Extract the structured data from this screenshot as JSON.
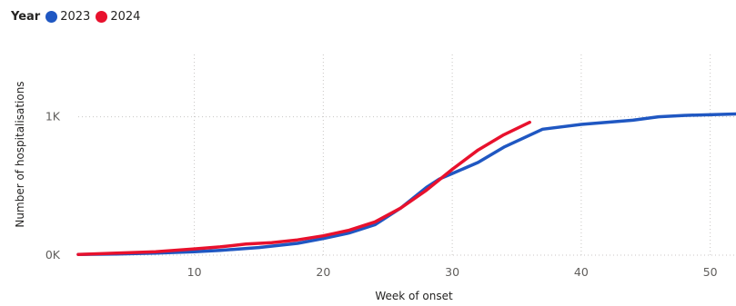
{
  "legend": {
    "title": "Year",
    "items": [
      {
        "label": "2023",
        "color": "#1f57c2"
      },
      {
        "label": "2024",
        "color": "#e8112d"
      }
    ]
  },
  "chart_data": {
    "type": "line",
    "title": "",
    "xlabel": "Week of onset",
    "ylabel": "Number of hospitalisations",
    "xlim": [
      1,
      52
    ],
    "ylim": [
      0,
      1450
    ],
    "x_ticks": [
      10,
      20,
      30,
      40,
      50
    ],
    "x_tick_labels": [
      "10",
      "20",
      "30",
      "40",
      "50"
    ],
    "y_ticks": [
      0,
      1000
    ],
    "y_tick_labels": [
      "0K",
      "1K"
    ],
    "grid": true,
    "legend_position": "top-left",
    "series": [
      {
        "name": "2023",
        "color": "#1f57c2",
        "x": [
          1,
          4,
          7,
          10,
          12,
          15,
          18,
          20,
          22,
          24,
          26,
          28,
          29,
          30,
          32,
          34,
          37,
          40,
          44,
          46,
          48,
          52
        ],
        "y": [
          5,
          8,
          15,
          25,
          35,
          55,
          85,
          120,
          160,
          220,
          340,
          490,
          550,
          590,
          670,
          780,
          910,
          945,
          975,
          1000,
          1010,
          1020
        ]
      },
      {
        "name": "2024",
        "color": "#e8112d",
        "x": [
          1,
          4,
          7,
          10,
          12,
          14,
          16,
          18,
          20,
          22,
          24,
          26,
          28,
          30,
          32,
          34,
          36
        ],
        "y": [
          5,
          15,
          25,
          45,
          60,
          80,
          90,
          110,
          140,
          180,
          240,
          340,
          470,
          620,
          760,
          870,
          960
        ]
      }
    ]
  }
}
